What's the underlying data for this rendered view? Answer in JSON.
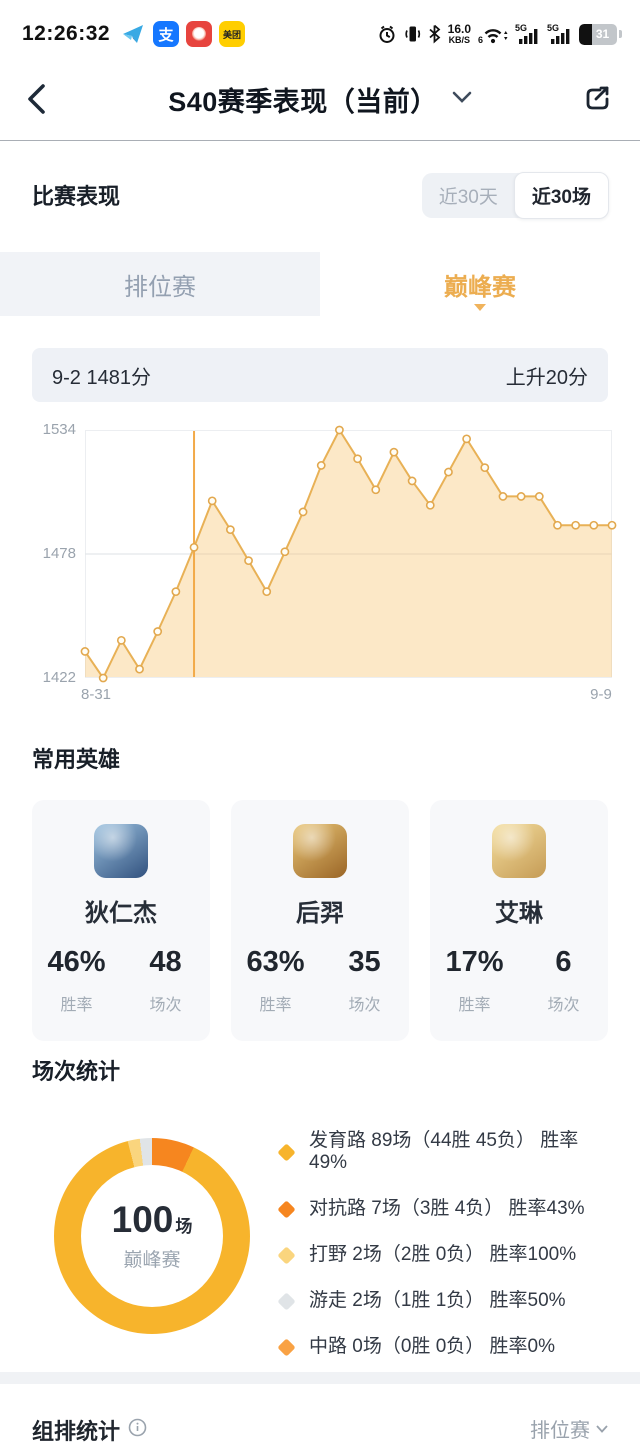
{
  "status_bar": {
    "time": "12:26:32",
    "app_icons": [
      "telegram",
      "alipay",
      "pinduoduo",
      "meituan"
    ],
    "alipay_glyph": "支",
    "meituan_glyph": "美团",
    "net_speed_value": "16.0",
    "net_speed_unit": "KB/S",
    "wifi_label": "6",
    "sim1_label": "5G",
    "sim2_label": "5G",
    "battery_percent": "31"
  },
  "header": {
    "title": "S40赛季表现（当前）"
  },
  "performance": {
    "section_title": "比赛表现",
    "range_toggle": {
      "options": [
        "近30天",
        "近30场"
      ],
      "selected": "近30场"
    },
    "tabs": [
      {
        "label": "排位赛",
        "active": false
      },
      {
        "label": "巅峰赛",
        "active": true
      }
    ],
    "info_bar": {
      "left": "9-2 1481分",
      "right": "上升20分"
    }
  },
  "chart_data": {
    "type": "line",
    "title": "巅峰赛积分走势(近30场)",
    "y_ticks": [
      "1534",
      "1478",
      "1422"
    ],
    "ylim": [
      1422,
      1534
    ],
    "x_start_label": "8-31",
    "x_end_label": "9-9",
    "selected_index": 6,
    "selected_point_label": "9-2 1481分",
    "selected_point_delta": "上升20分",
    "values": [
      1434,
      1422,
      1439,
      1426,
      1443,
      1461,
      1481,
      1502,
      1489,
      1475,
      1461,
      1479,
      1497,
      1518,
      1534,
      1521,
      1507,
      1524,
      1511,
      1500,
      1515,
      1530,
      1517,
      1504,
      1504,
      1504,
      1491,
      1491,
      1491,
      1491
    ],
    "line_color": "#E8B156",
    "area_color": "rgba(246,195,107,0.38)",
    "selected_line_color": "#F2AA49",
    "grid": true,
    "legend_position": "none"
  },
  "heroes": {
    "section_title": "常用英雄",
    "win_rate_label": "胜率",
    "matches_label": "场次",
    "items": [
      {
        "name": "狄仁杰",
        "win_rate": "46%",
        "matches": "48",
        "avatar_colors": [
          "#9CC2E0",
          "#31517E"
        ]
      },
      {
        "name": "后羿",
        "win_rate": "63%",
        "matches": "35",
        "avatar_colors": [
          "#E9C677",
          "#9A6526"
        ]
      },
      {
        "name": "艾琳",
        "win_rate": "17%",
        "matches": "6",
        "avatar_colors": [
          "#F4DE9E",
          "#C59B55"
        ]
      }
    ]
  },
  "match_stats": {
    "section_title": "场次统计",
    "donut": {
      "total": "100",
      "total_unit": "场",
      "mode": "巅峰赛"
    },
    "chart_data": {
      "type": "pie",
      "title": "场次统计(巅峰赛100场)",
      "segments": [
        {
          "name": "对抗路",
          "value": 7,
          "color": "#F6861F"
        },
        {
          "name": "发育路",
          "value": 89,
          "color": "#F7B42C"
        },
        {
          "name": "打野",
          "value": 2,
          "color": "#FAD57E"
        },
        {
          "name": "游走",
          "value": 2,
          "color": "#E0E4E7"
        },
        {
          "name": "中路",
          "value": 0,
          "color": "#F9A244"
        }
      ]
    },
    "legend": [
      {
        "color": "#F7B42C",
        "text": "发育路 89场（44胜 45负） 胜率49%"
      },
      {
        "color": "#F6861F",
        "text": "对抗路 7场（3胜 4负） 胜率43%"
      },
      {
        "color": "#FAD57E",
        "text": "打野 2场（2胜 0负） 胜率100%"
      },
      {
        "color": "#E0E4E7",
        "text": "游走 2场（1胜 1负） 胜率50%"
      },
      {
        "color": "#F9A244",
        "text": "中路 0场（0胜 0负） 胜率0%"
      }
    ]
  },
  "footer": {
    "left_title": "组排统计",
    "right_label": "排位赛"
  }
}
